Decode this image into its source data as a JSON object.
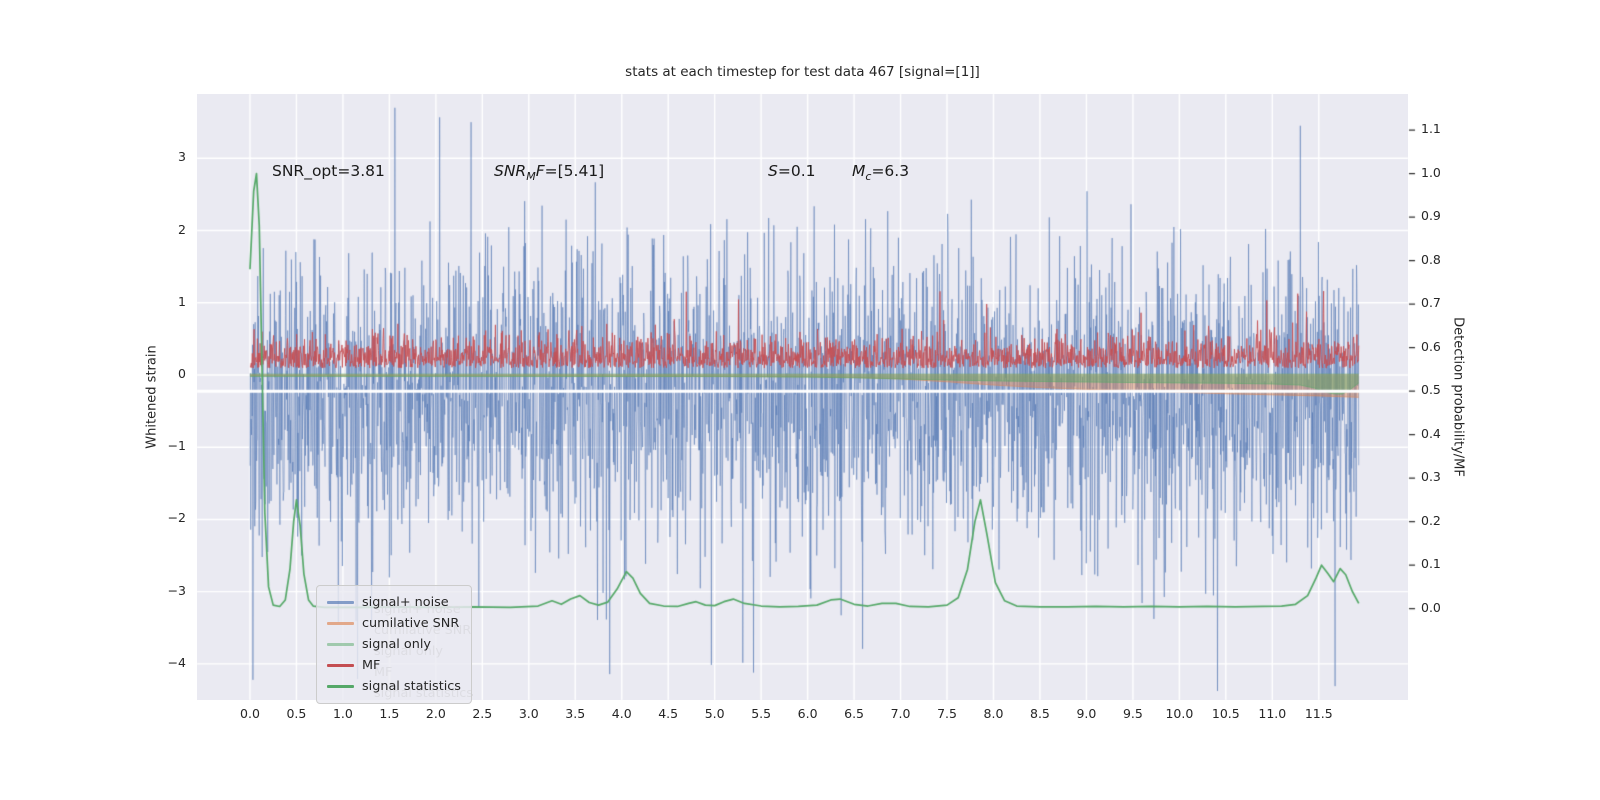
{
  "page": {
    "background": "#ffffff"
  },
  "chart_data": {
    "type": "line",
    "title": "stats at each timestep for test data 467 [signal=[1]]",
    "ylabel_left": "Whitened strain",
    "ylabel_right": "Detection probability/MF",
    "axes": {
      "xlim": [
        -0.57,
        12.46
      ],
      "ylim_left": [
        -4.5,
        3.89
      ],
      "ylim_right": [
        -0.21,
        1.183
      ],
      "y_grid_left": [
        -4,
        -3,
        -2,
        -1,
        0,
        1,
        2,
        3
      ],
      "y_grid_right_over": [
        0.5
      ],
      "background": "#eaeaf2",
      "grid_color": "#ffffff",
      "grid_on": true,
      "legend_position": "lower-left"
    },
    "x_ticks": [
      {
        "v": 0.0,
        "label": "0.0"
      },
      {
        "v": 0.5,
        "label": "0.5"
      },
      {
        "v": 1.0,
        "label": "1.0"
      },
      {
        "v": 1.5,
        "label": "1.5"
      },
      {
        "v": 2.0,
        "label": "2.0"
      },
      {
        "v": 2.5,
        "label": "2.5"
      },
      {
        "v": 3.0,
        "label": "3.0"
      },
      {
        "v": 3.5,
        "label": "3.5"
      },
      {
        "v": 4.0,
        "label": "4.0"
      },
      {
        "v": 4.5,
        "label": "4.5"
      },
      {
        "v": 5.0,
        "label": "5.0"
      },
      {
        "v": 5.5,
        "label": "5.5"
      },
      {
        "v": 6.0,
        "label": "6.0"
      },
      {
        "v": 6.5,
        "label": "6.5"
      },
      {
        "v": 7.0,
        "label": "7.0"
      },
      {
        "v": 7.5,
        "label": "7.5"
      },
      {
        "v": 8.0,
        "label": "8.0"
      },
      {
        "v": 8.5,
        "label": "8.5"
      },
      {
        "v": 9.0,
        "label": "9.0"
      },
      {
        "v": 9.5,
        "label": "9.5"
      },
      {
        "v": 10.0,
        "label": "10.0"
      },
      {
        "v": 10.5,
        "label": "10.5"
      },
      {
        "v": 11.0,
        "label": "11.0"
      },
      {
        "v": 11.5,
        "label": "11.5"
      }
    ],
    "y_ticks_left": [
      {
        "v": 3,
        "label": "3"
      },
      {
        "v": 2,
        "label": "2"
      },
      {
        "v": 1,
        "label": "1"
      },
      {
        "v": 0,
        "label": "0"
      },
      {
        "v": -1,
        "label": "−1"
      },
      {
        "v": -2,
        "label": "−2"
      },
      {
        "v": -3,
        "label": "−3"
      },
      {
        "v": -4,
        "label": "−4"
      }
    ],
    "y_ticks_right": [
      {
        "v": 1.1,
        "label": "1.1"
      },
      {
        "v": 1.0,
        "label": "1.0"
      },
      {
        "v": 0.9,
        "label": "0.9"
      },
      {
        "v": 0.8,
        "label": "0.8"
      },
      {
        "v": 0.7,
        "label": "0.7"
      },
      {
        "v": 0.6,
        "label": "0.6"
      },
      {
        "v": 0.5,
        "label": "0.5"
      },
      {
        "v": 0.4,
        "label": "0.4"
      },
      {
        "v": 0.3,
        "label": "0.3"
      },
      {
        "v": 0.2,
        "label": "0.2"
      },
      {
        "v": 0.1,
        "label": "0.1"
      },
      {
        "v": 0.0,
        "label": "0.0"
      }
    ],
    "annotations": {
      "snr_opt": "SNR_opt=3.81",
      "snr_mf_pre": "SNR",
      "snr_mf_sub": "M",
      "snr_mf_it2": "F",
      "snr_mf_rest": "=[5.41]",
      "s_var": "S",
      "s_rest": "=0.1",
      "mc_var": "M",
      "mc_sub": "c",
      "mc_rest": "=6.3"
    },
    "legend": {
      "items": [
        {
          "label": "signal+ noise",
          "color": "rgba(76,114,176,0.65)"
        },
        {
          "label": "cumilative SNR",
          "color": "rgba(221,132,82,0.65)"
        },
        {
          "label": "signal only",
          "color": "rgba(85,168,104,0.5)"
        },
        {
          "label": "MF",
          "color": "#c44e52"
        },
        {
          "label": "signal statistics",
          "color": "#55a868"
        }
      ],
      "ghost_offset": {
        "dx": 58,
        "dy": 14
      }
    },
    "series": {
      "signal_noise": {
        "kind": "gauss",
        "axis": "left",
        "n": 3000,
        "x_start": 0.0,
        "x_end": 11.93,
        "mean": -0.3,
        "sigma": 1.0,
        "tail_p": 0.004,
        "color": "rgba(76,114,176,0.5)",
        "extremes": [
          {
            "x": 2.38,
            "v": 3.5
          },
          {
            "x": 5.42,
            "v": -4.12
          },
          {
            "x": 11.3,
            "v": 3.45
          }
        ]
      },
      "mf": {
        "kind": "halfnormal",
        "axis": "right",
        "n": 2400,
        "x_start": 0.0,
        "x_end": 11.93,
        "base": 0.553,
        "spread": 0.035,
        "tail_p": 0.005,
        "color": "rgba(196,78,82,0.85)",
        "extremes": [
          {
            "x": 11.55,
            "v": 0.73
          }
        ]
      },
      "cumulative_snr": {
        "axis": "left",
        "top": 0.012,
        "fill": "rgba(221,132,82,0.45)",
        "edge": "rgba(221,132,82,0.6)",
        "points_lower": [
          [
            0.0,
            -0.012
          ],
          [
            3.0,
            -0.015
          ],
          [
            5.0,
            -0.02
          ],
          [
            6.0,
            -0.025
          ],
          [
            6.5,
            -0.035
          ],
          [
            7.0,
            -0.055
          ],
          [
            7.5,
            -0.095
          ],
          [
            8.0,
            -0.14
          ],
          [
            8.5,
            -0.175
          ],
          [
            9.0,
            -0.2
          ],
          [
            9.5,
            -0.22
          ],
          [
            10.0,
            -0.24
          ],
          [
            10.5,
            -0.26
          ],
          [
            11.0,
            -0.275
          ],
          [
            11.5,
            -0.29
          ],
          [
            11.93,
            -0.31
          ]
        ]
      },
      "signal_only": {
        "axis": "left",
        "top": 0.02,
        "fill": "rgba(85,168,104,0.45)",
        "edge": "rgba(85,168,104,0.6)",
        "points_lower": [
          [
            0.0,
            -0.02
          ],
          [
            5.0,
            -0.022
          ],
          [
            6.0,
            -0.03
          ],
          [
            6.5,
            -0.04
          ],
          [
            7.0,
            -0.055
          ],
          [
            7.5,
            -0.07
          ],
          [
            8.0,
            -0.082
          ],
          [
            8.5,
            -0.09
          ],
          [
            9.0,
            -0.098
          ],
          [
            9.5,
            -0.105
          ],
          [
            10.0,
            -0.11
          ],
          [
            10.5,
            -0.115
          ],
          [
            11.0,
            -0.125
          ],
          [
            11.3,
            -0.14
          ],
          [
            11.45,
            -0.18
          ],
          [
            11.55,
            -0.23
          ],
          [
            11.65,
            -0.26
          ],
          [
            11.75,
            -0.265
          ],
          [
            11.82,
            -0.22
          ],
          [
            11.88,
            -0.16
          ],
          [
            11.93,
            -0.11
          ]
        ]
      },
      "signal_statistics": {
        "axis": "right",
        "color": "#55a868",
        "width": 1.7,
        "points": [
          [
            0.0,
            0.78
          ],
          [
            0.04,
            0.96
          ],
          [
            0.07,
            1.0
          ],
          [
            0.1,
            0.88
          ],
          [
            0.13,
            0.55
          ],
          [
            0.16,
            0.22
          ],
          [
            0.2,
            0.05
          ],
          [
            0.25,
            0.008
          ],
          [
            0.32,
            0.005
          ],
          [
            0.38,
            0.02
          ],
          [
            0.43,
            0.09
          ],
          [
            0.47,
            0.2
          ],
          [
            0.5,
            0.25
          ],
          [
            0.54,
            0.19
          ],
          [
            0.58,
            0.08
          ],
          [
            0.63,
            0.02
          ],
          [
            0.68,
            0.006
          ],
          [
            0.8,
            0.003
          ],
          [
            1.2,
            0.003
          ],
          [
            1.6,
            0.004
          ],
          [
            2.0,
            0.003
          ],
          [
            2.4,
            0.004
          ],
          [
            2.8,
            0.003
          ],
          [
            3.1,
            0.006
          ],
          [
            3.25,
            0.018
          ],
          [
            3.35,
            0.01
          ],
          [
            3.45,
            0.022
          ],
          [
            3.55,
            0.03
          ],
          [
            3.65,
            0.014
          ],
          [
            3.75,
            0.008
          ],
          [
            3.85,
            0.015
          ],
          [
            3.95,
            0.045
          ],
          [
            4.05,
            0.085
          ],
          [
            4.12,
            0.07
          ],
          [
            4.2,
            0.035
          ],
          [
            4.3,
            0.012
          ],
          [
            4.45,
            0.006
          ],
          [
            4.6,
            0.005
          ],
          [
            4.72,
            0.012
          ],
          [
            4.8,
            0.016
          ],
          [
            4.9,
            0.008
          ],
          [
            5.0,
            0.007
          ],
          [
            5.1,
            0.016
          ],
          [
            5.2,
            0.022
          ],
          [
            5.32,
            0.012
          ],
          [
            5.5,
            0.006
          ],
          [
            5.7,
            0.004
          ],
          [
            5.9,
            0.005
          ],
          [
            6.1,
            0.008
          ],
          [
            6.25,
            0.02
          ],
          [
            6.35,
            0.022
          ],
          [
            6.5,
            0.01
          ],
          [
            6.65,
            0.006
          ],
          [
            6.8,
            0.012
          ],
          [
            6.95,
            0.012
          ],
          [
            7.1,
            0.005
          ],
          [
            7.3,
            0.004
          ],
          [
            7.5,
            0.008
          ],
          [
            7.62,
            0.025
          ],
          [
            7.72,
            0.09
          ],
          [
            7.8,
            0.2
          ],
          [
            7.86,
            0.25
          ],
          [
            7.93,
            0.17
          ],
          [
            8.02,
            0.06
          ],
          [
            8.12,
            0.018
          ],
          [
            8.25,
            0.006
          ],
          [
            8.5,
            0.004
          ],
          [
            8.8,
            0.004
          ],
          [
            9.1,
            0.005
          ],
          [
            9.4,
            0.004
          ],
          [
            9.7,
            0.005
          ],
          [
            10.0,
            0.004
          ],
          [
            10.3,
            0.005
          ],
          [
            10.6,
            0.004
          ],
          [
            10.9,
            0.005
          ],
          [
            11.1,
            0.006
          ],
          [
            11.25,
            0.01
          ],
          [
            11.38,
            0.03
          ],
          [
            11.47,
            0.07
          ],
          [
            11.53,
            0.1
          ],
          [
            11.6,
            0.08
          ],
          [
            11.66,
            0.062
          ],
          [
            11.73,
            0.092
          ],
          [
            11.79,
            0.078
          ],
          [
            11.86,
            0.04
          ],
          [
            11.93,
            0.012
          ]
        ]
      }
    },
    "seed": 42
  }
}
